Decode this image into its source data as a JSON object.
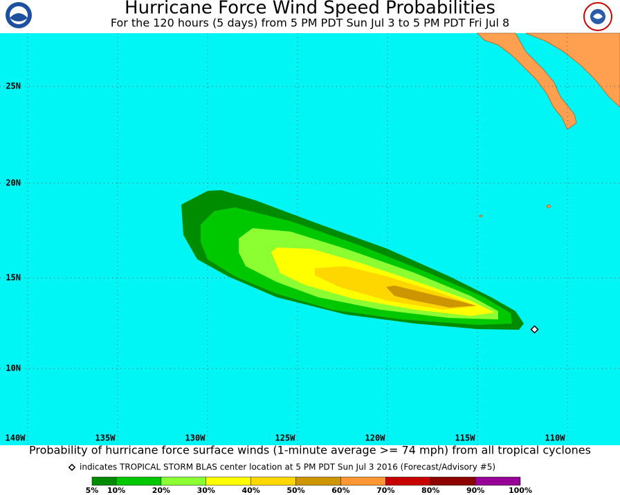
{
  "header": {
    "title": "Hurricane Force Wind Speed Probabilities",
    "subtitle": "For the 120 hours (5 days) from 5 PM PDT Sun Jul 3 to 5 PM PDT Fri Jul 8"
  },
  "map": {
    "lat_labels": [
      "25N",
      "20N",
      "15N",
      "10N"
    ],
    "lon_labels": [
      "140W",
      "135W",
      "130W",
      "125W",
      "120W",
      "115W",
      "110W"
    ]
  },
  "footer": {
    "description": "Probability of hurricane force surface winds (1-minute average >= 74 mph) from all tropical cyclones",
    "marker_note": "indicates TROPICAL STORM BLAS center location at 5 PM PDT Sun Jul 3 2016 (Forecast/Advisory #5)"
  },
  "legend": {
    "labels": [
      "5%",
      "10%",
      "20%",
      "30%",
      "40%",
      "50%",
      "60%",
      "70%",
      "80%",
      "90%",
      "100%"
    ],
    "colors": [
      "#008c00",
      "#00c800",
      "#8cff32",
      "#ffff00",
      "#ffd700",
      "#cd9600",
      "#ff9632",
      "#c80000",
      "#8c0000",
      "#960096"
    ]
  }
}
